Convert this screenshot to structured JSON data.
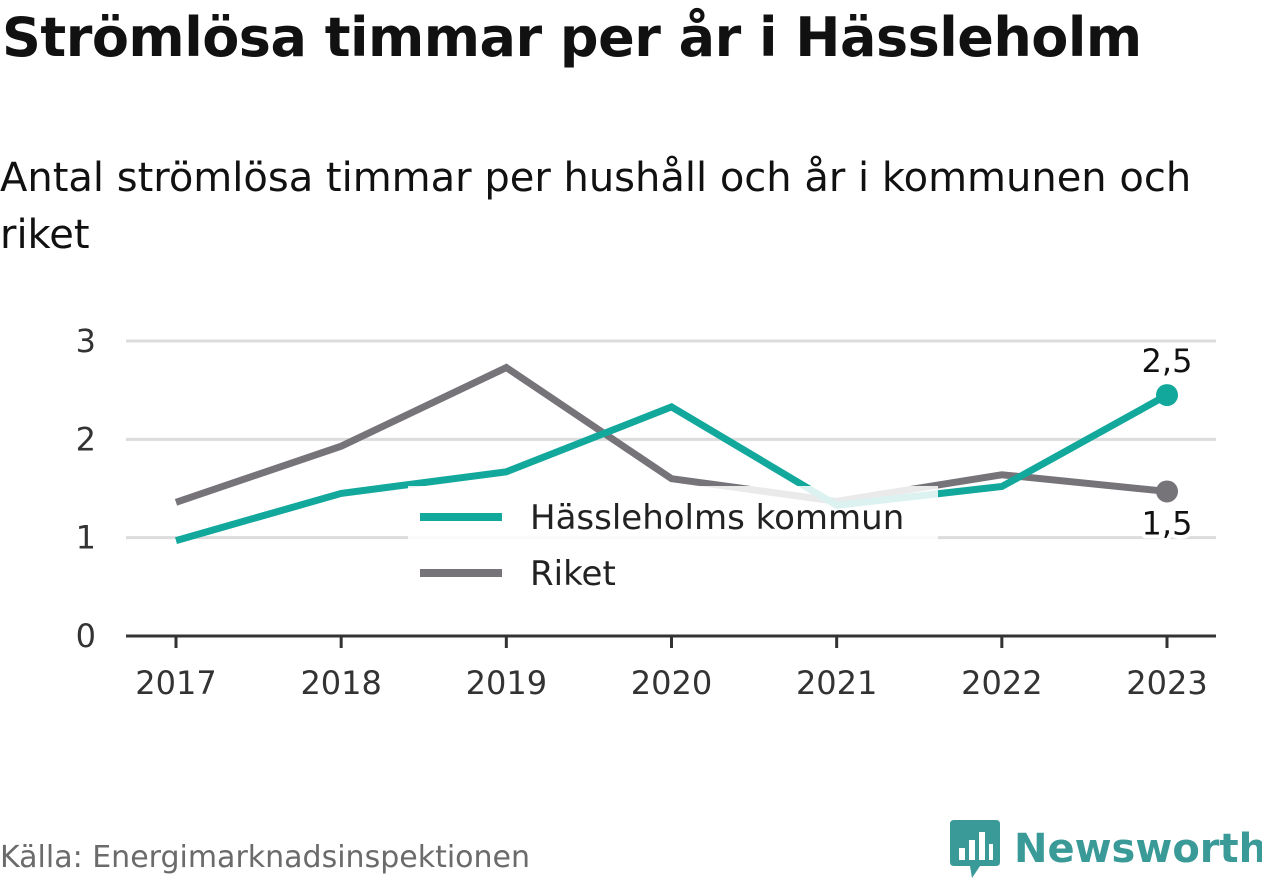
{
  "title": "Strömlösa timmar per år i Hässleholm",
  "subtitle": "Antal strömlösa timmar per hushåll och år i kommunen och riket",
  "source": "Källa: Energimarknadsinspektionen",
  "brand": "Newsworthy",
  "colors": {
    "kommun": "#12a89b",
    "riket": "#767479",
    "grid": "#dcdcdc",
    "axis": "#333333",
    "brand": "#3a9a98"
  },
  "chart_data": {
    "type": "line",
    "x": [
      "2017",
      "2018",
      "2019",
      "2020",
      "2021",
      "2022",
      "2023"
    ],
    "ylim": [
      0,
      3
    ],
    "yticks": [
      "0",
      "1",
      "2",
      "3"
    ],
    "grid": true,
    "legend_placement": "bottom-center",
    "series": [
      {
        "name": "Hässleholms kommun",
        "values": [
          0.97,
          1.45,
          1.67,
          2.33,
          1.33,
          1.52,
          2.45
        ],
        "end_label": "2,5"
      },
      {
        "name": "Riket",
        "values": [
          1.36,
          1.93,
          2.73,
          1.6,
          1.37,
          1.64,
          1.47
        ],
        "end_label": "1,5"
      }
    ]
  }
}
